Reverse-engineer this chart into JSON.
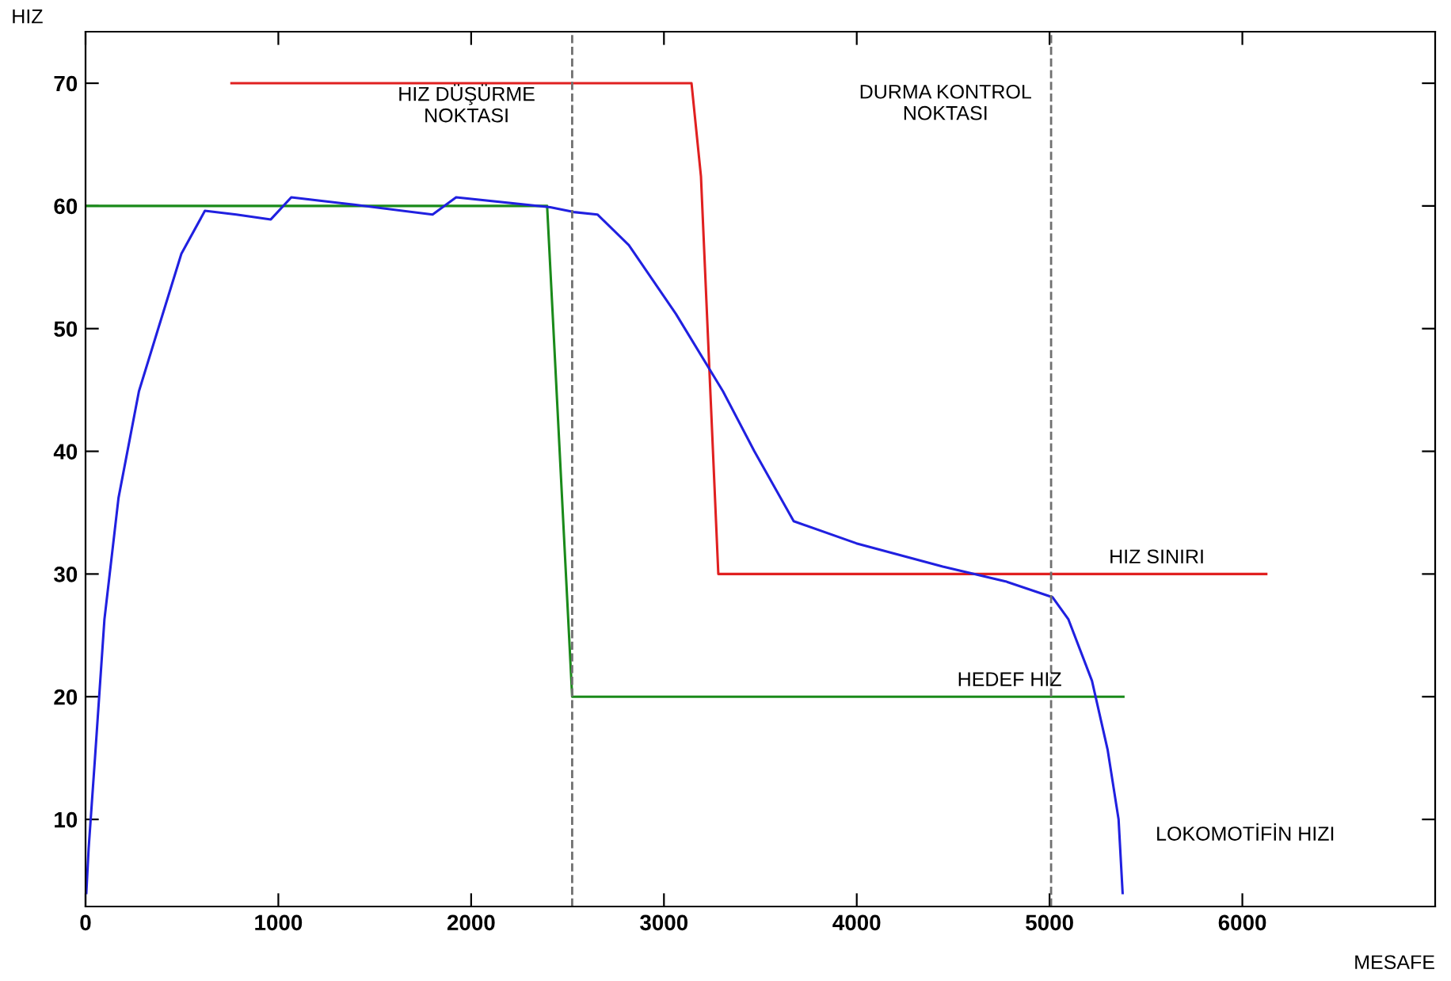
{
  "chart_data": {
    "type": "line",
    "xlabel": "MESAFE",
    "ylabel": "HIZ",
    "xlim": [
      0,
      7000
    ],
    "ylim": [
      2.9,
      74.2
    ],
    "xticks": [
      0,
      1000,
      2000,
      3000,
      4000,
      5000,
      6000
    ],
    "yticks": [
      10,
      20,
      30,
      40,
      50,
      60,
      70
    ],
    "grid": false,
    "legend": false,
    "marker": "none",
    "line_style": "solid",
    "series": [
      {
        "name": "HIZ SINIRI",
        "color": "#e02020",
        "x": [
          757,
          3143,
          3192,
          3282,
          6124
        ],
        "values": [
          70,
          70,
          62.4,
          30,
          30
        ]
      },
      {
        "name": "HEDEF HIZ",
        "color": "#1a8a1a",
        "x": [
          0,
          2394,
          2427,
          2524,
          5383
        ],
        "values": [
          60,
          60,
          49.9,
          20,
          20
        ]
      },
      {
        "name": "LOKOMOTİFİN HIZI",
        "color": "#2020e0",
        "x": [
          4,
          16,
          49,
          98,
          171,
          277,
          375,
          497,
          619,
          782,
          961,
          1067,
          1393,
          1800,
          1922,
          2410,
          2532,
          2655,
          2818,
          3062,
          3306,
          3469,
          3673,
          3998,
          4446,
          4772,
          5016,
          5098,
          5220,
          5301,
          5358,
          5379
        ],
        "values": [
          4,
          7.6,
          15,
          26.3,
          36.2,
          44.9,
          49.9,
          56.1,
          59.6,
          59.3,
          58.9,
          60.7,
          60.1,
          59.3,
          60.7,
          59.9,
          59.5,
          59.3,
          56.8,
          51.2,
          44.9,
          40,
          34.3,
          32.5,
          30.6,
          29.4,
          28.1,
          26.3,
          21.3,
          15.7,
          10,
          4
        ]
      }
    ],
    "ref_lines": [
      {
        "axis": "x",
        "value": 2524,
        "label": "HIZ DÜŞÜRME\nNOKTASI",
        "color": "#707070",
        "line_style": "dashed"
      },
      {
        "axis": "x",
        "value": 5008,
        "label": "DURMA KONTROL\nNOKTASI",
        "color": "#707070",
        "line_style": "dashed"
      }
    ]
  }
}
